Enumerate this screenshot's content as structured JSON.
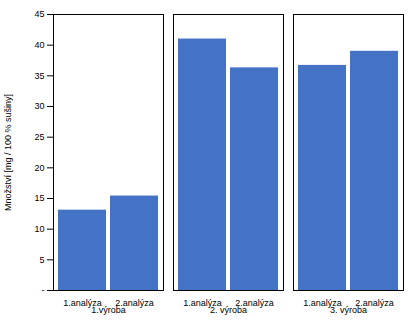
{
  "chart_data": {
    "type": "bar",
    "ylabel": "Množství [mg / 100 % sušiny]",
    "categories": [
      "1.výroba",
      "2. výroba",
      "3. výroba"
    ],
    "series": [
      {
        "name": "1.analýza",
        "values": [
          13.1,
          41.0,
          36.7
        ]
      },
      {
        "name": "2.analýza",
        "values": [
          15.4,
          36.3,
          39.0
        ]
      }
    ],
    "color": "#4472C4",
    "ylim": [
      0,
      45
    ],
    "yticks": [
      {
        "value": 0,
        "label": "-"
      },
      5,
      10,
      15,
      20,
      25,
      30,
      35,
      40,
      45
    ]
  }
}
